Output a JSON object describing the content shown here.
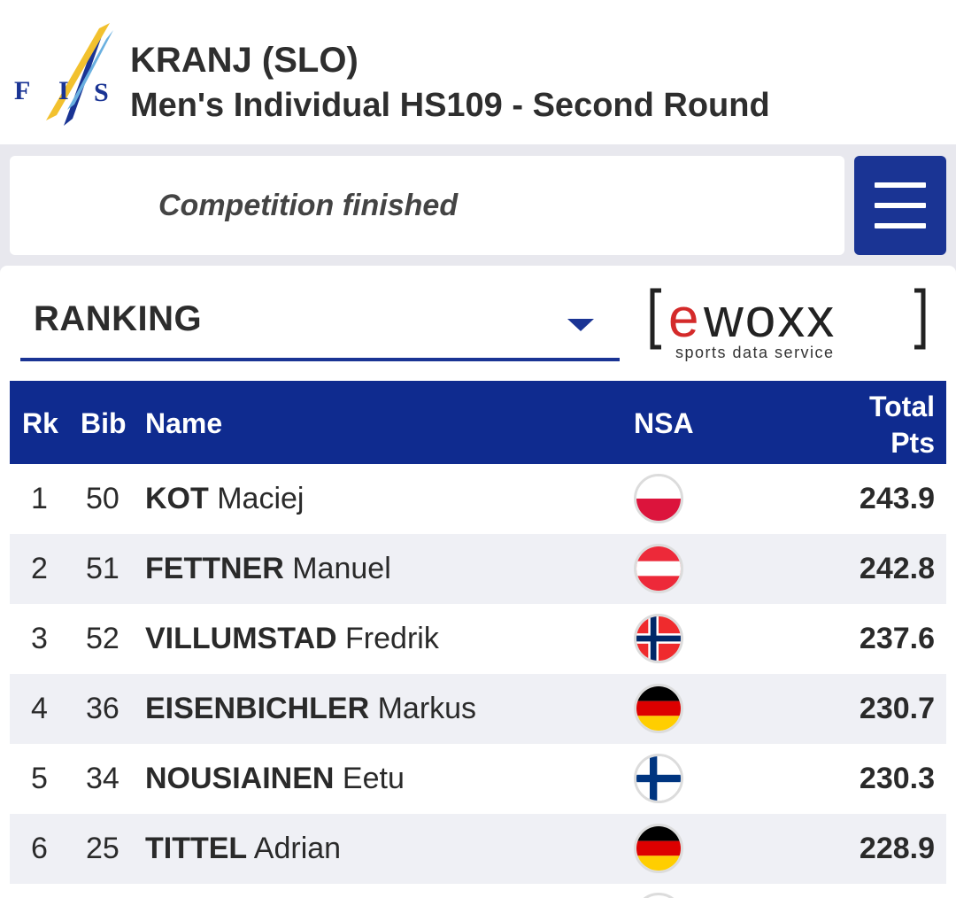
{
  "header": {
    "logo_letters": "F I S",
    "title": "KRANJ (SLO)",
    "subtitle": "Men's Individual HS109 - Second Round"
  },
  "status": {
    "text": "Competition finished"
  },
  "menu_button": {
    "icon": "hamburger-menu-icon"
  },
  "view_selector": {
    "selected": "RANKING"
  },
  "sponsor": {
    "name": "[ewoxx]",
    "tagline": "sports data service"
  },
  "table": {
    "columns": {
      "rank": "Rk",
      "bib": "Bib",
      "name": "Name",
      "nsa": "NSA",
      "total_line1": "Total",
      "total_line2": "Pts"
    },
    "rows": [
      {
        "rank": "1",
        "bib": "50",
        "last": "KOT",
        "first": "Maciej",
        "nsa": "POL",
        "total": "243.9"
      },
      {
        "rank": "2",
        "bib": "51",
        "last": "FETTNER",
        "first": "Manuel",
        "nsa": "AUT",
        "total": "242.8"
      },
      {
        "rank": "3",
        "bib": "52",
        "last": "VILLUMSTAD",
        "first": "Fredrik",
        "nsa": "NOR",
        "total": "237.6"
      },
      {
        "rank": "4",
        "bib": "36",
        "last": "EISENBICHLER",
        "first": "Markus",
        "nsa": "GER",
        "total": "230.7"
      },
      {
        "rank": "5",
        "bib": "34",
        "last": "NOUSIAINEN",
        "first": "Eetu",
        "nsa": "FIN",
        "total": "230.3"
      },
      {
        "rank": "6",
        "bib": "25",
        "last": "TITTEL",
        "first": "Adrian",
        "nsa": "GER",
        "total": "228.9"
      }
    ]
  },
  "colors": {
    "brand_blue": "#1a3494",
    "header_blue": "#0f2b8f",
    "ewoxx_red": "#d42a2a"
  }
}
